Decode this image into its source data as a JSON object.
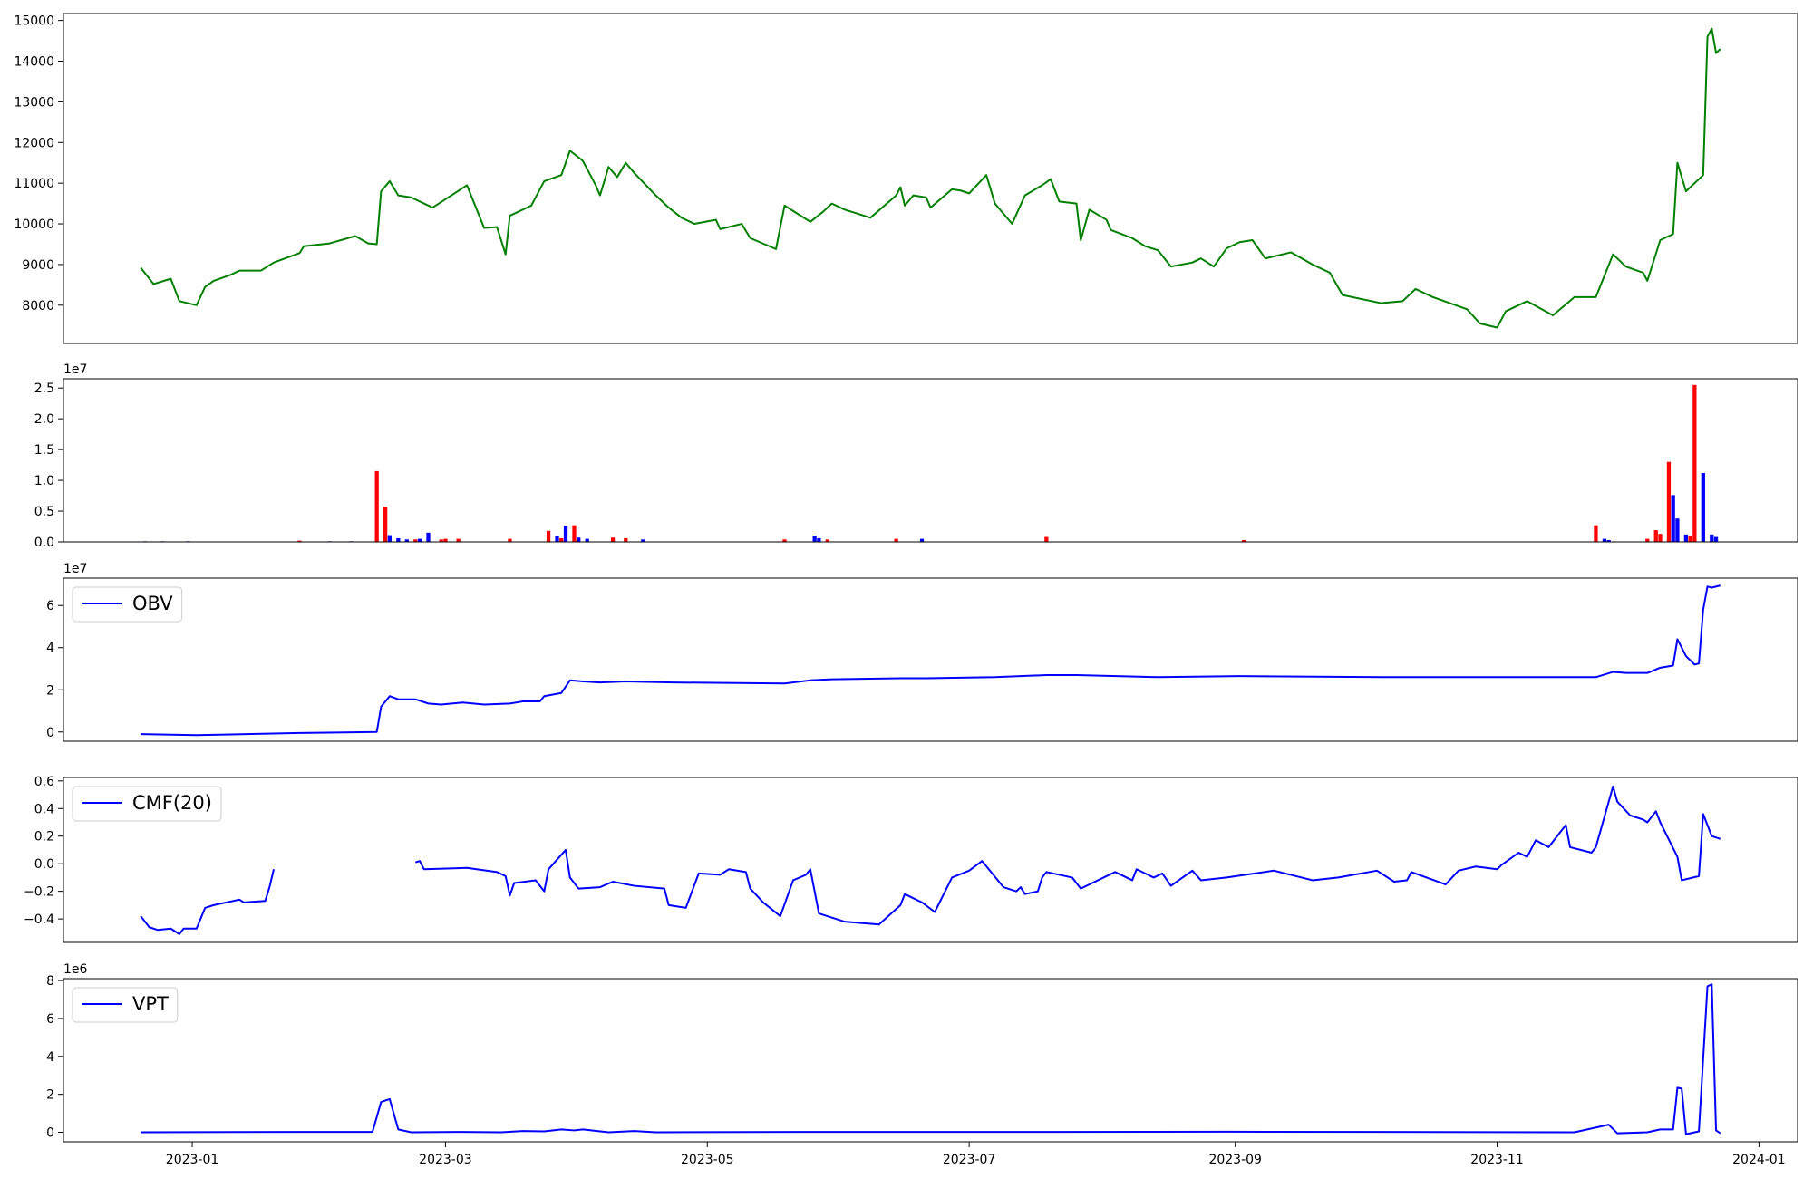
{
  "chart_data": [
    {
      "type": "line",
      "color": "green",
      "x": [
        19346,
        19349,
        19353,
        19355,
        19359,
        19361,
        19363,
        19367,
        19369,
        19374,
        19377,
        19383,
        19384,
        19390,
        19396,
        19399,
        19401,
        19402,
        19404,
        19406,
        19409,
        19414,
        19422,
        19426,
        19429,
        19431,
        19432,
        19437,
        19440,
        19444,
        19446,
        19449,
        19452,
        19453,
        19455,
        19457,
        19459,
        19461,
        19466,
        19469,
        19472,
        19475,
        19480,
        19481,
        19486,
        19488,
        19494,
        19496,
        19502,
        19505,
        19507,
        19510,
        19516,
        19522,
        19523,
        19524,
        19526,
        19529,
        19530,
        19535,
        19537,
        19539,
        19543,
        19545,
        19549,
        19552,
        19556,
        19558,
        19560,
        19564,
        19565,
        19567,
        19571,
        19572,
        19577,
        19580,
        19583,
        19586,
        19591,
        19593,
        19596,
        19599,
        19602,
        19605,
        19608,
        19614,
        19619,
        19623,
        19626,
        19635,
        19640,
        19643,
        19647,
        19651,
        19655,
        19658,
        19662,
        19664,
        19669,
        19675,
        19680,
        19685,
        19689,
        19692,
        19696,
        19697,
        19700,
        19703,
        19704,
        19706,
        19710,
        19711,
        19712,
        19713,
        19714
      ],
      "values": [
        8920,
        8520,
        8650,
        8100,
        8000,
        8450,
        8600,
        8750,
        8850,
        8850,
        9050,
        9280,
        9450,
        9520,
        9700,
        9520,
        9500,
        10800,
        11050,
        10700,
        10650,
        10400,
        10950,
        9900,
        9920,
        9250,
        10200,
        10450,
        11050,
        11200,
        11800,
        11550,
        10950,
        10700,
        11400,
        11150,
        11500,
        11250,
        10700,
        10400,
        10150,
        10000,
        10100,
        9870,
        10000,
        9650,
        9380,
        10450,
        10050,
        10300,
        10500,
        10350,
        10150,
        10700,
        10900,
        10450,
        10700,
        10650,
        10400,
        10850,
        10820,
        10750,
        11200,
        10500,
        10000,
        10700,
        10950,
        11100,
        10550,
        10500,
        9600,
        10350,
        10100,
        9850,
        9650,
        9450,
        9350,
        8950,
        9050,
        9150,
        8950,
        9400,
        9550,
        9600,
        9150,
        9300,
        9000,
        8800,
        8250,
        8050,
        8100,
        8400,
        8200,
        8050,
        7900,
        7550,
        7450,
        7850,
        8100,
        7750,
        8200,
        8200,
        9250,
        8950,
        8800,
        8600,
        9600,
        9750,
        11500,
        10800,
        11200,
        14600,
        14800,
        14200,
        14300
      ],
      "xlim": [
        19328,
        19732
      ],
      "ylim": [
        7060,
        15170
      ],
      "yticks": [
        8000,
        9000,
        10000,
        11000,
        12000,
        13000,
        14000,
        15000
      ]
    },
    {
      "type": "bar",
      "y_offset_label": "1e7",
      "x": [
        19347,
        19351,
        19357,
        19383,
        19390,
        19395,
        19401,
        19403,
        19404,
        19406,
        19408,
        19410,
        19411,
        19413,
        19416,
        19417,
        19420,
        19432,
        19441,
        19443,
        19444,
        19445,
        19447,
        19448,
        19450,
        19456,
        19459,
        19463,
        19496,
        19503,
        19504,
        19506,
        19522,
        19528,
        19557,
        19603,
        19685,
        19687,
        19688,
        19697,
        19699,
        19700,
        19702,
        19703,
        19704,
        19706,
        19707,
        19708,
        19710,
        19712,
        19713
      ],
      "values": [
        0.01,
        0.01,
        0.01,
        0.02,
        0.01,
        0.01,
        1.15,
        0.57,
        0.11,
        0.06,
        0.04,
        0.04,
        0.05,
        0.15,
        0.04,
        0.05,
        0.05,
        0.05,
        0.18,
        0.09,
        0.06,
        0.26,
        0.27,
        0.07,
        0.05,
        0.07,
        0.06,
        0.04,
        0.04,
        0.1,
        0.06,
        0.04,
        0.05,
        0.05,
        0.08,
        0.03,
        0.27,
        0.05,
        0.03,
        0.05,
        0.19,
        0.13,
        1.3,
        0.76,
        0.38,
        0.12,
        0.09,
        2.55,
        1.12,
        0.12,
        0.08
      ],
      "colors": [
        "blue",
        "blue",
        "blue",
        "red",
        "blue",
        "blue",
        "red",
        "red",
        "blue",
        "blue",
        "blue",
        "red",
        "blue",
        "blue",
        "red",
        "red",
        "red",
        "red",
        "red",
        "blue",
        "red",
        "blue",
        "red",
        "blue",
        "blue",
        "red",
        "red",
        "blue",
        "red",
        "blue",
        "blue",
        "red",
        "red",
        "blue",
        "red",
        "red",
        "red",
        "blue",
        "blue",
        "red",
        "red",
        "red",
        "red",
        "blue",
        "blue",
        "blue",
        "red",
        "red",
        "blue",
        "blue",
        "blue"
      ],
      "xlim": [
        19328,
        19732
      ],
      "ylim": [
        0,
        2.65
      ],
      "yticks": [
        {
          "value": 0,
          "label": "0.0"
        },
        0.5,
        {
          "value": 1,
          "label": "1.0"
        },
        1.5,
        {
          "value": 2,
          "label": "2.0"
        },
        2.5
      ]
    },
    {
      "type": "line",
      "y_offset_label": "1e7",
      "legend": "upper left",
      "x": [
        19346,
        19359,
        19383,
        19401,
        19402,
        19404,
        19406,
        19410,
        19413,
        19416,
        19421,
        19426,
        19432,
        19435,
        19439,
        19440,
        19444,
        19446,
        19449,
        19453,
        19459,
        19470,
        19496,
        19502,
        19507,
        19523,
        19529,
        19545,
        19557,
        19564,
        19583,
        19602,
        19636,
        19685,
        19689,
        19692,
        19697,
        19700,
        19703,
        19704,
        19706,
        19708,
        19709,
        19710,
        19711,
        19712,
        19714
      ],
      "series": [
        {
          "name": "OBV",
          "color": "blue",
          "values": [
            -0.1,
            -0.15,
            -0.05,
            0,
            1.2,
            1.7,
            1.55,
            1.55,
            1.35,
            1.3,
            1.4,
            1.3,
            1.35,
            1.45,
            1.45,
            1.7,
            1.85,
            2.45,
            2.4,
            2.35,
            2.4,
            2.35,
            2.3,
            2.45,
            2.5,
            2.55,
            2.55,
            2.6,
            2.7,
            2.7,
            2.6,
            2.65,
            2.6,
            2.6,
            2.85,
            2.8,
            2.8,
            3.05,
            3.15,
            4.4,
            3.6,
            3.2,
            3.25,
            5.8,
            6.9,
            6.85,
            6.95
          ]
        }
      ],
      "xlim": [
        19328,
        19732
      ],
      "ylim": [
        -0.44,
        7.3
      ],
      "yticks": [
        0,
        2,
        4,
        6
      ]
    },
    {
      "type": "line",
      "legend": "upper left",
      "x": [
        19346,
        19348,
        19350,
        19353,
        19355,
        19356,
        19359,
        19361,
        19363,
        19369,
        19370,
        19375,
        19376,
        19377,
        19395,
        19410,
        19411,
        19412,
        19422,
        19429,
        19431,
        19432,
        19433,
        19438,
        19440,
        19441,
        19445,
        19446,
        19448,
        19453,
        19456,
        19461,
        19468,
        19469,
        19473,
        19476,
        19481,
        19483,
        19487,
        19488,
        19491,
        19495,
        19498,
        19501,
        19502,
        19504,
        19510,
        19518,
        19523,
        19524,
        19528,
        19531,
        19535,
        19539,
        19542,
        19547,
        19550,
        19551,
        19552,
        19555,
        19556,
        19557,
        19563,
        19565,
        19573,
        19577,
        19578,
        19582,
        19584,
        19586,
        19591,
        19593,
        19599,
        19610,
        19619,
        19625,
        19634,
        19638,
        19641,
        19642,
        19650,
        19653,
        19657,
        19662,
        19663,
        19667,
        19669,
        19671,
        19674,
        19678,
        19679,
        19684,
        19685,
        19689,
        19690,
        19693,
        19696,
        19697,
        19699,
        19700,
        19704,
        19705,
        19709,
        19710,
        19712,
        19714
      ],
      "series": [
        {
          "name": "CMF(20)",
          "color": "blue",
          "values": [
            -0.38,
            -0.46,
            -0.48,
            -0.47,
            -0.51,
            -0.47,
            -0.47,
            -0.32,
            -0.3,
            -0.26,
            -0.28,
            -0.27,
            -0.17,
            -0.04,
            null,
            0.01,
            0.02,
            -0.04,
            -0.03,
            -0.06,
            -0.09,
            -0.23,
            -0.14,
            -0.12,
            -0.2,
            -0.04,
            0.1,
            -0.1,
            -0.18,
            -0.17,
            -0.13,
            -0.16,
            -0.18,
            -0.3,
            -0.32,
            -0.07,
            -0.08,
            -0.04,
            -0.06,
            -0.18,
            -0.28,
            -0.38,
            -0.12,
            -0.08,
            -0.04,
            -0.36,
            -0.42,
            -0.44,
            -0.3,
            -0.22,
            -0.28,
            -0.35,
            -0.1,
            -0.05,
            0.02,
            -0.17,
            -0.2,
            -0.17,
            -0.22,
            -0.2,
            -0.1,
            -0.06,
            -0.1,
            -0.18,
            -0.06,
            -0.12,
            -0.04,
            -0.1,
            -0.07,
            -0.16,
            -0.05,
            -0.12,
            -0.1,
            -0.05,
            -0.12,
            -0.1,
            -0.05,
            -0.13,
            -0.12,
            -0.06,
            -0.15,
            -0.05,
            -0.02,
            -0.04,
            -0.01,
            0.08,
            0.05,
            0.17,
            0.12,
            0.28,
            0.12,
            0.08,
            0.12,
            0.56,
            0.45,
            0.35,
            0.32,
            0.3,
            0.38,
            0.3,
            0.05,
            -0.12,
            -0.09,
            0.36,
            0.2,
            0.18
          ]
        }
      ],
      "xlim": [
        19328,
        19732
      ],
      "ylim": [
        -0.57,
        0.625
      ],
      "yticks": [
        {
          "value": -0.4,
          "label": "−0.4"
        },
        {
          "value": -0.2,
          "label": "−0.2"
        },
        {
          "value": 0,
          "label": "0.0"
        },
        0.2,
        0.4,
        0.6
      ]
    },
    {
      "type": "line",
      "y_offset_label": "1e6",
      "legend": "upper left",
      "x": [
        19346,
        19383,
        19400,
        19402,
        19404,
        19406,
        19409,
        19420,
        19430,
        19435,
        19440,
        19444,
        19447,
        19449,
        19455,
        19461,
        19466,
        19500,
        19560,
        19600,
        19680,
        19686,
        19688,
        19690,
        19697,
        19700,
        19703,
        19704,
        19705,
        19706,
        19709,
        19711,
        19712,
        19713,
        19714
      ],
      "series": [
        {
          "name": "VPT",
          "color": "blue",
          "values": [
            0,
            0.02,
            0.02,
            1.6,
            1.75,
            0.15,
            0,
            0.02,
            0,
            0.07,
            0.05,
            0.15,
            0.1,
            0.15,
            0,
            0.07,
            0,
            0.02,
            0.02,
            0.03,
            0,
            0.3,
            0.4,
            -0.05,
            0,
            0.15,
            0.15,
            2.35,
            2.3,
            -0.1,
            0.05,
            7.7,
            7.8,
            0.1,
            -0.05
          ]
        }
      ],
      "xlim": [
        19328,
        19732
      ],
      "ylim": [
        -0.5,
        8.1
      ],
      "yticks": [
        0,
        2,
        4,
        6,
        8
      ],
      "xticks": [
        {
          "value": 19358,
          "label": "2023-01"
        },
        {
          "value": 19417,
          "label": "2023-03"
        },
        {
          "value": 19478,
          "label": "2023-05"
        },
        {
          "value": 19539,
          "label": "2023-07"
        },
        {
          "value": 19601,
          "label": "2023-09"
        },
        {
          "value": 19662,
          "label": "2023-11"
        },
        {
          "value": 19723,
          "label": "2024-01"
        }
      ]
    }
  ]
}
